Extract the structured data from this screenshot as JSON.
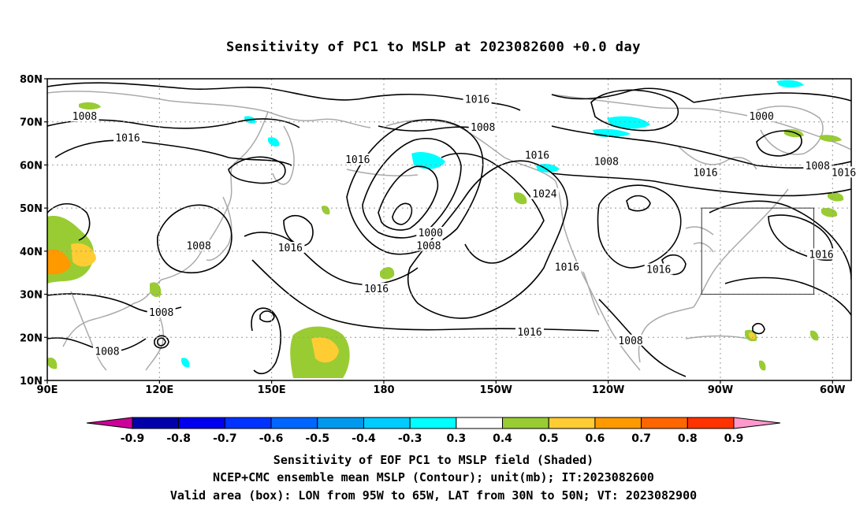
{
  "title": "Sensitivity of PC1 to MSLP at 2023082600 +0.0 day",
  "captions": {
    "line1": "Sensitivity of EOF PC1 to MSLP field (Shaded)",
    "line2": "NCEP+CMC ensemble mean MSLP (Contour); unit(mb); IT:2023082600",
    "line3": "Valid area (box): LON from 95W to 65W, LAT from 30N to 50N; VT: 2023082900"
  },
  "map": {
    "lon_range": [
      90,
      305
    ],
    "lat_range": [
      10,
      80
    ],
    "x_ticks": [
      {
        "lon": 90,
        "label": "90E"
      },
      {
        "lon": 120,
        "label": "120E"
      },
      {
        "lon": 150,
        "label": "150E"
      },
      {
        "lon": 180,
        "label": "180"
      },
      {
        "lon": 210,
        "label": "150W"
      },
      {
        "lon": 240,
        "label": "120W"
      },
      {
        "lon": 270,
        "label": "90W"
      },
      {
        "lon": 300,
        "label": "60W"
      }
    ],
    "y_ticks": [
      {
        "lat": 10,
        "label": "10N"
      },
      {
        "lat": 20,
        "label": "20N"
      },
      {
        "lat": 30,
        "label": "30N"
      },
      {
        "lat": 40,
        "label": "40N"
      },
      {
        "lat": 50,
        "label": "50N"
      },
      {
        "lat": 60,
        "label": "60N"
      },
      {
        "lat": 70,
        "label": "70N"
      },
      {
        "lat": 80,
        "label": "80N"
      }
    ],
    "valid_box": {
      "lon_min": 265,
      "lon_max": 295,
      "lat_min": 30,
      "lat_max": 50
    },
    "contour_labels": [
      {
        "lon": 100,
        "lat": 71,
        "text": "1008"
      },
      {
        "lon": 111.5,
        "lat": 66,
        "text": "1016"
      },
      {
        "lon": 205,
        "lat": 75,
        "text": "1016"
      },
      {
        "lon": 206.5,
        "lat": 68.5,
        "text": "1008"
      },
      {
        "lon": 173,
        "lat": 61,
        "text": "1016"
      },
      {
        "lon": 221,
        "lat": 62,
        "text": "1016"
      },
      {
        "lon": 223,
        "lat": 53,
        "text": "1024"
      },
      {
        "lon": 239.5,
        "lat": 60.5,
        "text": "1008"
      },
      {
        "lon": 266,
        "lat": 58,
        "text": "1016"
      },
      {
        "lon": 281,
        "lat": 71,
        "text": "1000"
      },
      {
        "lon": 296,
        "lat": 59.5,
        "text": "1008"
      },
      {
        "lon": 303,
        "lat": 58,
        "text": "1016"
      },
      {
        "lon": 192.5,
        "lat": 44,
        "text": "1000"
      },
      {
        "lon": 192,
        "lat": 41,
        "text": "1008"
      },
      {
        "lon": 130.5,
        "lat": 41,
        "text": "1008"
      },
      {
        "lon": 155,
        "lat": 40.5,
        "text": "1016"
      },
      {
        "lon": 178,
        "lat": 31,
        "text": "1016"
      },
      {
        "lon": 229,
        "lat": 36,
        "text": "1016"
      },
      {
        "lon": 253.5,
        "lat": 35.5,
        "text": "1016"
      },
      {
        "lon": 297,
        "lat": 39,
        "text": "1016"
      },
      {
        "lon": 219,
        "lat": 21,
        "text": "1016"
      },
      {
        "lon": 246,
        "lat": 19,
        "text": "1008"
      },
      {
        "lon": 120.5,
        "lat": 25.5,
        "text": "1008"
      },
      {
        "lon": 106,
        "lat": 16.5,
        "text": "1008"
      }
    ]
  },
  "colorbar": {
    "labels": [
      "-0.9",
      "-0.8",
      "-0.7",
      "-0.6",
      "-0.5",
      "-0.4",
      "-0.3",
      "0.3",
      "0.4",
      "0.5",
      "0.6",
      "0.7",
      "0.8",
      "0.9"
    ],
    "colors": [
      "#0000aa",
      "#0000ee",
      "#0033ff",
      "#0066ff",
      "#0099ee",
      "#00ccff",
      "#00ffff",
      "#ffffff",
      "#99cc33",
      "#ffcc33",
      "#ff9900",
      "#ff6600",
      "#ff3300",
      "#ff0000"
    ],
    "low_end_color": "#cc0099",
    "high_end_color": "#ff99cc"
  },
  "shading_colors": {
    "cyan": "#00ffff",
    "green": "#99cc33",
    "yellow": "#ffcc33",
    "orange": "#ff9900"
  },
  "coast_color": "#aaaaaa"
}
